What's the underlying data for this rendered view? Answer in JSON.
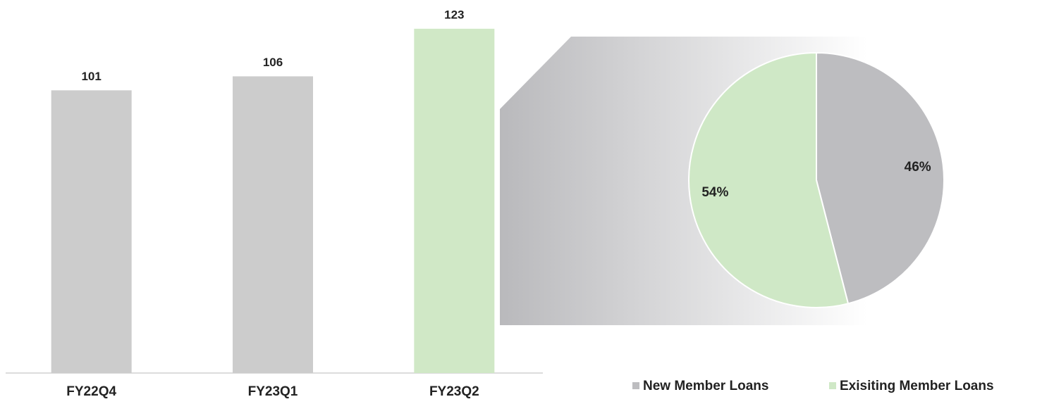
{
  "chart_data": [
    {
      "type": "bar",
      "categories": [
        "FY22Q4",
        "FY23Q1",
        "FY23Q2"
      ],
      "values": [
        101,
        106,
        123
      ],
      "colors": [
        "#cccccc",
        "#cccccc",
        "#d0e8c6"
      ],
      "ylim": [
        0,
        130
      ]
    },
    {
      "type": "pie",
      "categories": [
        "New Member Loans",
        "Exisiting Member Loans"
      ],
      "values": [
        46,
        54
      ],
      "value_labels": [
        "46%",
        "54%"
      ],
      "colors": [
        "#bdbdc0",
        "#cfe8c6"
      ]
    }
  ]
}
